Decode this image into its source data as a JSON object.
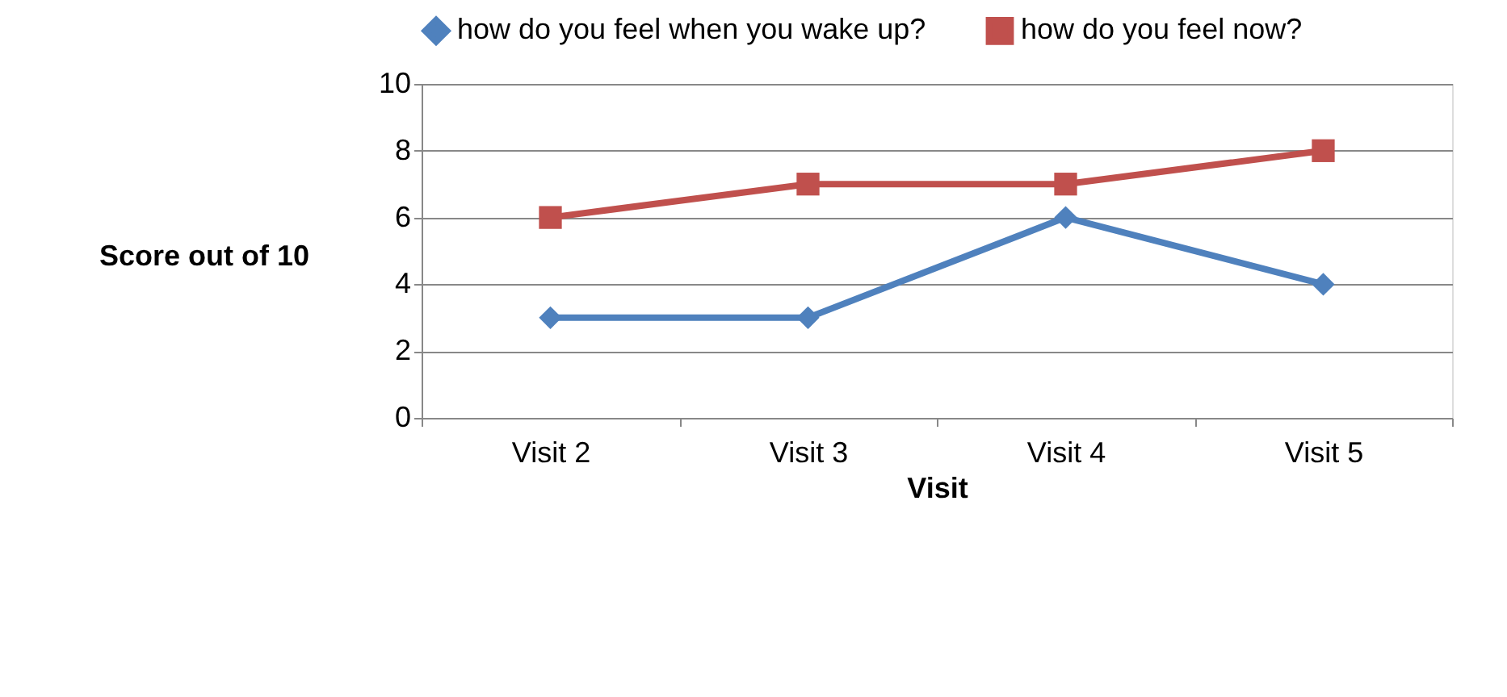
{
  "chart_data": {
    "type": "line",
    "xlabel": "Visit",
    "ylabel": "Score out of 10",
    "categories": [
      "Visit 2",
      "Visit 3",
      "Visit 4",
      "Visit 5"
    ],
    "series": [
      {
        "name": "how do you feel when you wake up?",
        "color": "#4f81bd",
        "marker": "diamond",
        "values": [
          3,
          3,
          6,
          4
        ]
      },
      {
        "name": "how do you feel now?",
        "color": "#c0504d",
        "marker": "square",
        "values": [
          6,
          7,
          7,
          8
        ]
      }
    ],
    "ylim": [
      0,
      10
    ],
    "yticks": [
      0,
      2,
      4,
      6,
      8,
      10
    ],
    "grid": "y",
    "legend": "top",
    "line_style": "solid"
  }
}
